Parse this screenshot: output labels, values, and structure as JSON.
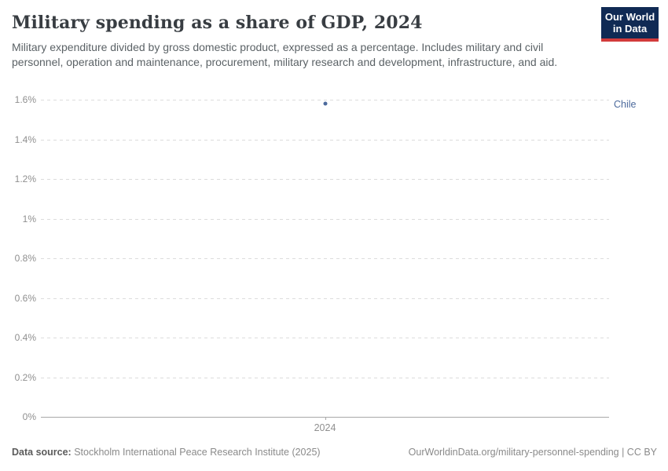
{
  "header": {
    "title": "Military spending as a share of GDP, 2024",
    "subtitle": "Military expenditure divided by gross domestic product, expressed as a percentage. Includes military and civil personnel, operation and maintenance, procurement, military research and development, infrastructure, and aid.",
    "logo": {
      "line1": "Our World",
      "line2": "in Data",
      "bg_color": "#102a54",
      "accent_color": "#d23b3b"
    }
  },
  "chart_data": {
    "type": "scatter",
    "title": "Military spending as a share of GDP, 2024",
    "subtitle": "Military expenditure divided by gross domestic product, expressed as a percentage. Includes military and civil personnel, operation and maintenance, procurement, military research and development, infrastructure, and aid.",
    "xlabel": "",
    "ylabel": "",
    "x": [
      2024
    ],
    "series": [
      {
        "name": "Chile",
        "color": "#4c6a9c",
        "points": [
          {
            "x": 2024,
            "y": 1.58
          }
        ]
      }
    ],
    "ylim": [
      0,
      1.6
    ],
    "yticks": [
      {
        "value": 0,
        "label": "0%"
      },
      {
        "value": 0.2,
        "label": "0.2%"
      },
      {
        "value": 0.4,
        "label": "0.4%"
      },
      {
        "value": 0.6,
        "label": "0.6%"
      },
      {
        "value": 0.8,
        "label": "0.8%"
      },
      {
        "value": 1,
        "label": "1%"
      },
      {
        "value": 1.2,
        "label": "1.2%"
      },
      {
        "value": 1.4,
        "label": "1.4%"
      },
      {
        "value": 1.6,
        "label": "1.6%"
      }
    ],
    "xticks": [
      {
        "value": 2024,
        "label": "2024"
      }
    ],
    "grid": "horizontal-dashed",
    "legend_position": "entity-label-right",
    "axis_color": "#a8a8a8",
    "grid_color": "#dcdcdc",
    "tick_label_color": "#8f8f8f"
  },
  "footer": {
    "source_label": "Data source:",
    "source_text": " Stockholm International Peace Research Institute (2025)",
    "link_text": "OurWorldinData.org/military-personnel-spending | CC BY"
  }
}
